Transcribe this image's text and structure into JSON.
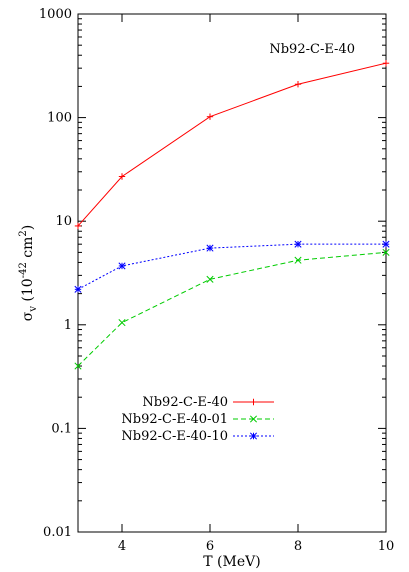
{
  "chart_data": {
    "type": "line",
    "title": "Nb92-C-E-40",
    "xlabel": "T (MeV)",
    "ylabel": "σ_v (10^-42 cm^2)",
    "ylabel_parts": {
      "sigma": "σ",
      "sub": "v",
      "open": " (10",
      "exp1": "-42",
      "unit": " cm",
      "exp2": "2",
      "close": ")"
    },
    "xlim": [
      3,
      10
    ],
    "ylim": [
      0.01,
      1000
    ],
    "yscale": "log",
    "grid": false,
    "legend_position": "center-left",
    "x_ticks": [
      {
        "v": 4,
        "label": "4"
      },
      {
        "v": 6,
        "label": "6"
      },
      {
        "v": 8,
        "label": "8"
      },
      {
        "v": 10,
        "label": "10"
      }
    ],
    "y_ticks": [
      {
        "v": 0.01,
        "label": "0.01"
      },
      {
        "v": 0.1,
        "label": "0.1"
      },
      {
        "v": 1,
        "label": "1"
      },
      {
        "v": 10,
        "label": "10"
      },
      {
        "v": 100,
        "label": "100"
      },
      {
        "v": 1000,
        "label": "1000"
      }
    ],
    "series": [
      {
        "name": "Nb92-C-E-40",
        "color": "#ff0000",
        "marker": "plus",
        "dash": "",
        "x": [
          3,
          4,
          6,
          8,
          10
        ],
        "y": [
          9,
          27,
          102,
          210,
          335
        ]
      },
      {
        "name": "Nb92-C-E-40-01",
        "color": "#00cc00",
        "marker": "cross",
        "dash": "5,3",
        "x": [
          3,
          4,
          6,
          8,
          10
        ],
        "y": [
          0.4,
          1.05,
          2.75,
          4.2,
          5.0
        ]
      },
      {
        "name": "Nb92-C-E-40-10",
        "color": "#0000ff",
        "marker": "star",
        "dash": "2,2",
        "x": [
          3,
          4,
          6,
          8,
          10
        ],
        "y": [
          2.2,
          3.7,
          5.5,
          6.0,
          6.0
        ]
      }
    ]
  }
}
